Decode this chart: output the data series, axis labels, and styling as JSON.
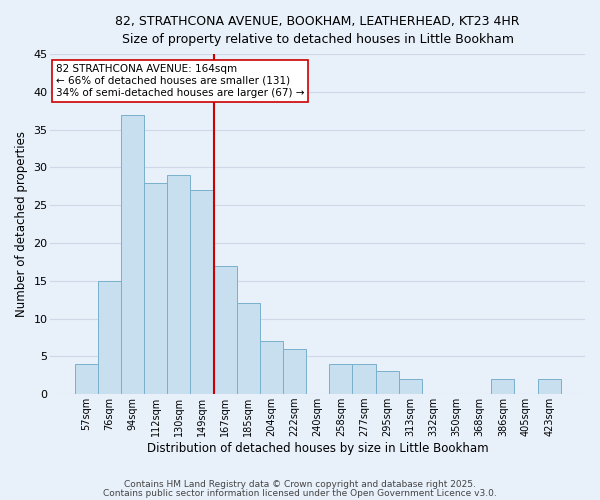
{
  "title1": "82, STRATHCONA AVENUE, BOOKHAM, LEATHERHEAD, KT23 4HR",
  "title2": "Size of property relative to detached houses in Little Bookham",
  "xlabel": "Distribution of detached houses by size in Little Bookham",
  "ylabel": "Number of detached properties",
  "bar_color": "#c8dff0",
  "bar_edge_color": "#7ab0cc",
  "background_color": "#e8f0fa",
  "grid_color": "#d0d8e8",
  "categories": [
    "57sqm",
    "76sqm",
    "94sqm",
    "112sqm",
    "130sqm",
    "149sqm",
    "167sqm",
    "185sqm",
    "204sqm",
    "222sqm",
    "240sqm",
    "258sqm",
    "277sqm",
    "295sqm",
    "313sqm",
    "332sqm",
    "350sqm",
    "368sqm",
    "386sqm",
    "405sqm",
    "423sqm"
  ],
  "values": [
    4,
    15,
    37,
    28,
    29,
    27,
    17,
    12,
    7,
    6,
    0,
    4,
    4,
    3,
    2,
    0,
    0,
    0,
    2,
    0,
    2
  ],
  "vline_x_index": 6,
  "vline_color": "#cc0000",
  "annotation_title": "82 STRATHCONA AVENUE: 164sqm",
  "annotation_line1": "← 66% of detached houses are smaller (131)",
  "annotation_line2": "34% of semi-detached houses are larger (67) →",
  "annotation_box_color": "#ffffff",
  "annotation_box_edge": "#cc0000",
  "ylim": [
    0,
    45
  ],
  "yticks": [
    0,
    5,
    10,
    15,
    20,
    25,
    30,
    35,
    40,
    45
  ],
  "footer1": "Contains HM Land Registry data © Crown copyright and database right 2025.",
  "footer2": "Contains public sector information licensed under the Open Government Licence v3.0."
}
